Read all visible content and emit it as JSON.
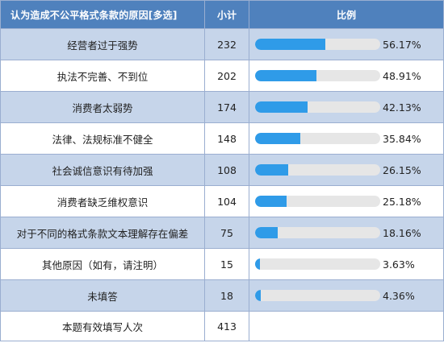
{
  "header": {
    "option": "认为造成不公平格式条款的原因[多选]",
    "count": "小计",
    "ratio": "比例"
  },
  "rows": [
    {
      "label": "经营者过于强势",
      "count": "232",
      "percent": "56.17%",
      "value": 56.17
    },
    {
      "label": "执法不完善、不到位",
      "count": "202",
      "percent": "48.91%",
      "value": 48.91
    },
    {
      "label": "消费者太弱势",
      "count": "174",
      "percent": "42.13%",
      "value": 42.13
    },
    {
      "label": "法律、法规标准不健全",
      "count": "148",
      "percent": "35.84%",
      "value": 35.84
    },
    {
      "label": "社会诚信意识有待加强",
      "count": "108",
      "percent": "26.15%",
      "value": 26.15
    },
    {
      "label": "消费者缺乏维权意识",
      "count": "104",
      "percent": "25.18%",
      "value": 25.18
    },
    {
      "label": "对于不同的格式条款文本理解存在偏差",
      "count": "75",
      "percent": "18.16%",
      "value": 18.16
    },
    {
      "label": "其他原因（如有，请注明）",
      "count": "15",
      "percent": "3.63%",
      "value": 3.63
    },
    {
      "label": "未填答",
      "count": "18",
      "percent": "4.36%",
      "value": 4.36
    }
  ],
  "footer": {
    "label": "本题有效填写人次",
    "count": "413"
  },
  "colors": {
    "header_bg": "#4f81bd",
    "row_shade": "#c6d5ea",
    "bar_fill": "#2f9be8",
    "bar_track": "#e6e6e6"
  }
}
